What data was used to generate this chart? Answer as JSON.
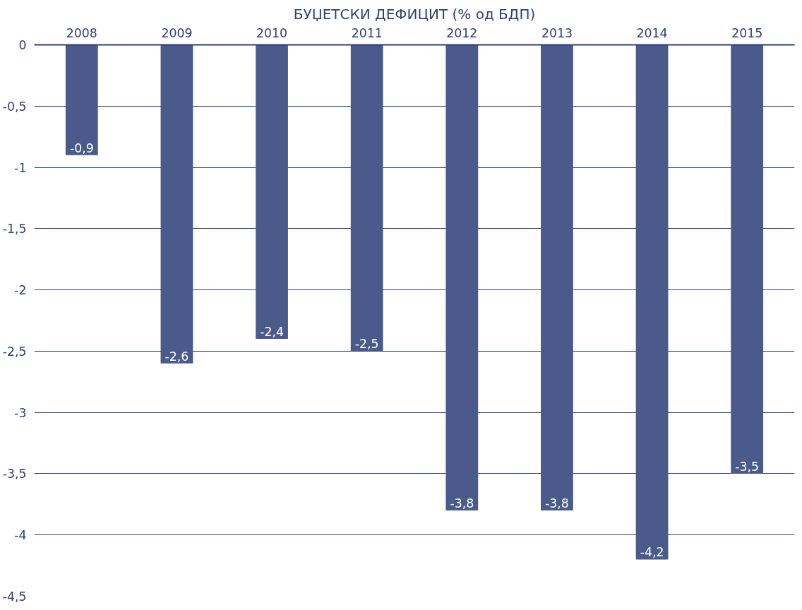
{
  "chart_data": {
    "type": "bar",
    "title": "БУЏЕТСКИ ДЕФИЦИТ (% од БДП)",
    "categories": [
      "2008",
      "2009",
      "2010",
      "2011",
      "2012",
      "2013",
      "2014",
      "2015"
    ],
    "values": [
      -0.9,
      -2.6,
      -2.4,
      -2.5,
      -3.8,
      -3.8,
      -4.2,
      -3.5
    ],
    "value_labels": [
      "-0,9",
      "-2,6",
      "-2,4",
      "-2,5",
      "-3,8",
      "-3,8",
      "-4,2",
      "-3,5"
    ],
    "color": "#4a5a8a",
    "ylim": [
      -4.5,
      0
    ],
    "yticks": [
      0,
      {
        "value": -0.5,
        "label": "-0,5"
      },
      -1,
      {
        "value": -1.5,
        "label": "-1,5"
      },
      -2,
      {
        "value": -2.5,
        "label": "-2,5"
      },
      -3,
      {
        "value": -3.5,
        "label": "-3,5"
      },
      -4,
      {
        "value": -4.5,
        "label": "-4,5"
      }
    ],
    "grid": "y"
  }
}
